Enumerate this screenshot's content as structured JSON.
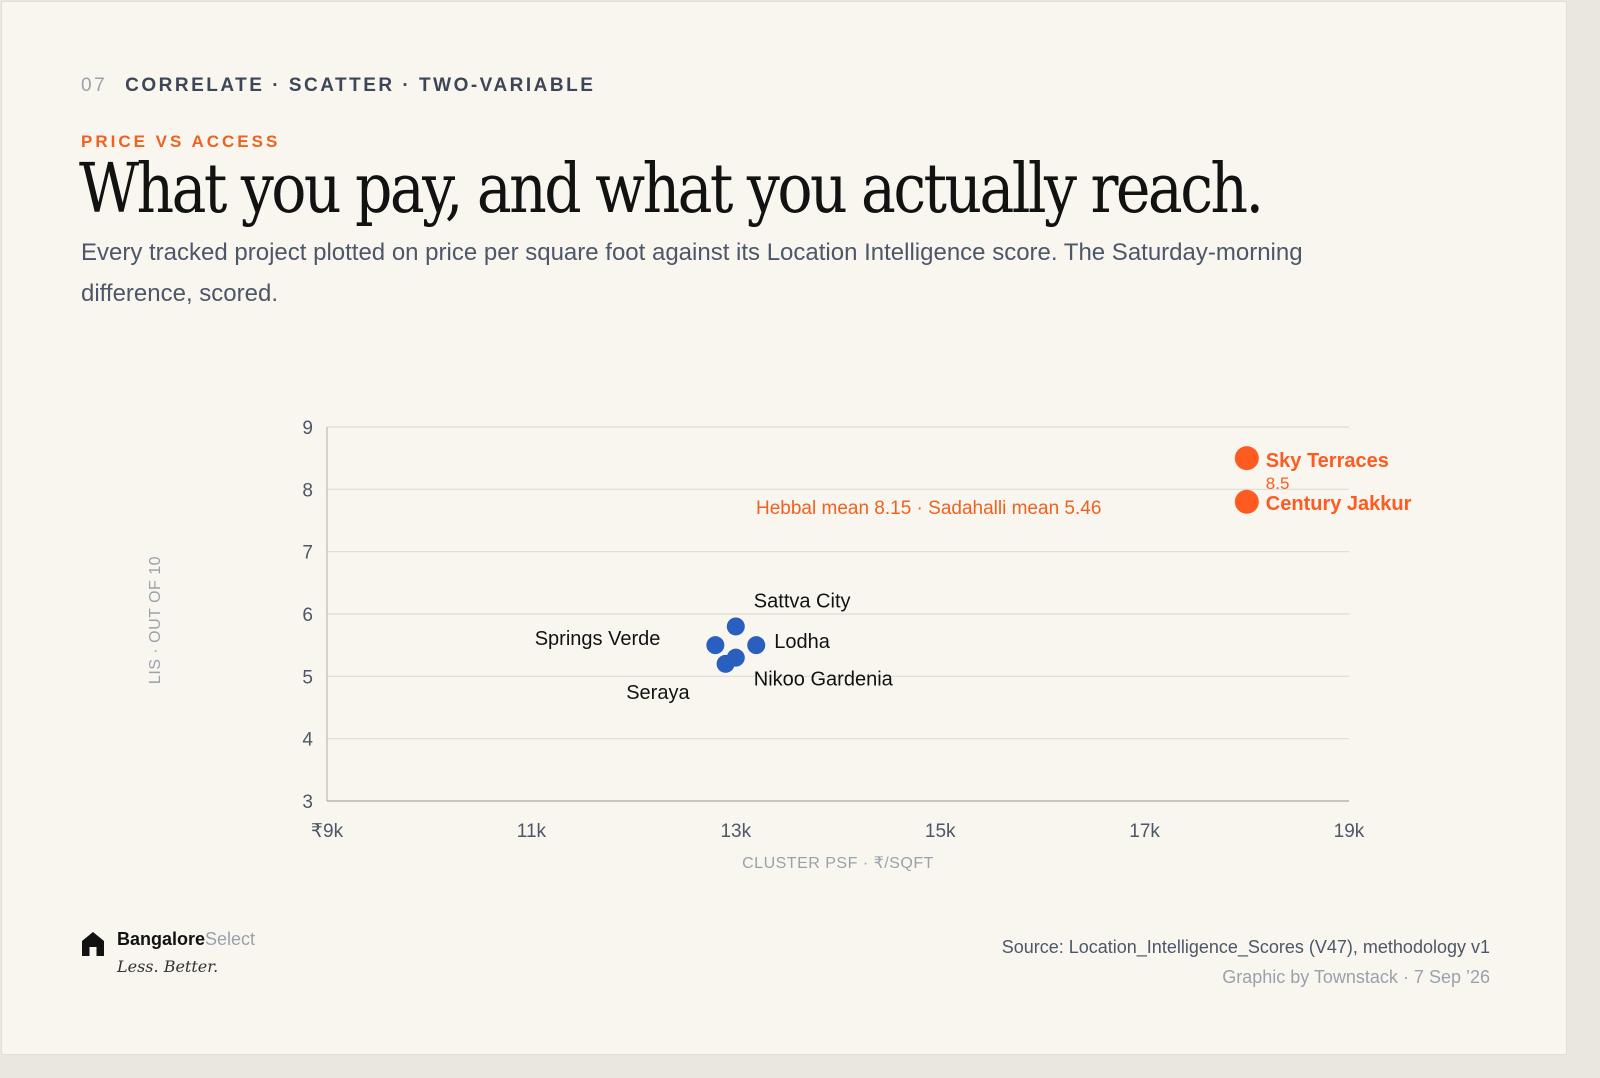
{
  "header": {
    "section_number": "07",
    "section_label": "CORRELATE · SCATTER · TWO-VARIABLE",
    "kicker": "PRICE VS ACCESS",
    "title": "What you pay, and what you actually reach.",
    "subtitle": "Every tracked project plotted on price per square foot against its Location Intelligence score. The Saturday-morning difference, scored."
  },
  "colors": {
    "accent": "#f0611f",
    "series_hebbal": "#ff5a1f",
    "series_sadahalli": "#2a5fc0",
    "text_dark": "#121212",
    "text_muted": "#9aa1ad",
    "grid": "#dedbd1"
  },
  "chart_data": {
    "type": "scatter",
    "xlabel": "CLUSTER PSF · ₹/SQFT",
    "ylabel": "LIS · OUT OF 10",
    "xlim": [
      9000,
      19000
    ],
    "ylim": [
      3,
      9
    ],
    "x_ticks": [
      9000,
      11000,
      13000,
      15000,
      17000,
      19000
    ],
    "x_tick_labels": [
      "₹9k",
      "11k",
      "13k",
      "15k",
      "17k",
      "19k"
    ],
    "y_ticks": [
      3,
      4,
      5,
      6,
      7,
      8,
      9
    ],
    "y_tick_labels": [
      "3",
      "4",
      "5",
      "6",
      "7",
      "8",
      "9"
    ],
    "grid": "horizontal",
    "annotation": "Hebbal mean 8.15 · Sadahalli mean 5.46",
    "series": [
      {
        "color": "#ff5a1f",
        "points": [
          {
            "label": "Sky Terraces",
            "x": 18000,
            "y": 8.5,
            "value_label": "8.5"
          },
          {
            "label": "Century Jakkur",
            "x": 18000,
            "y": 7.8
          }
        ]
      },
      {
        "color": "#2a5fc0",
        "points": [
          {
            "label": "Sattva City",
            "x": 13000,
            "y": 5.8
          },
          {
            "label": "Springs Verde",
            "x": 12800,
            "y": 5.5
          },
          {
            "label": "Lodha",
            "x": 13200,
            "y": 5.5
          },
          {
            "label": "Nikoo Gardenia",
            "x": 13000,
            "y": 5.3
          },
          {
            "label": "Seraya",
            "x": 12900,
            "y": 5.2
          }
        ]
      }
    ]
  },
  "footer": {
    "brand_name": "Bangalore",
    "brand_suffix": "Select",
    "tagline": "Less. Better.",
    "source": "Source: Location_Intelligence_Scores (V47), methodology v1",
    "credit": "Graphic by Townstack · 7 Sep ’26"
  }
}
